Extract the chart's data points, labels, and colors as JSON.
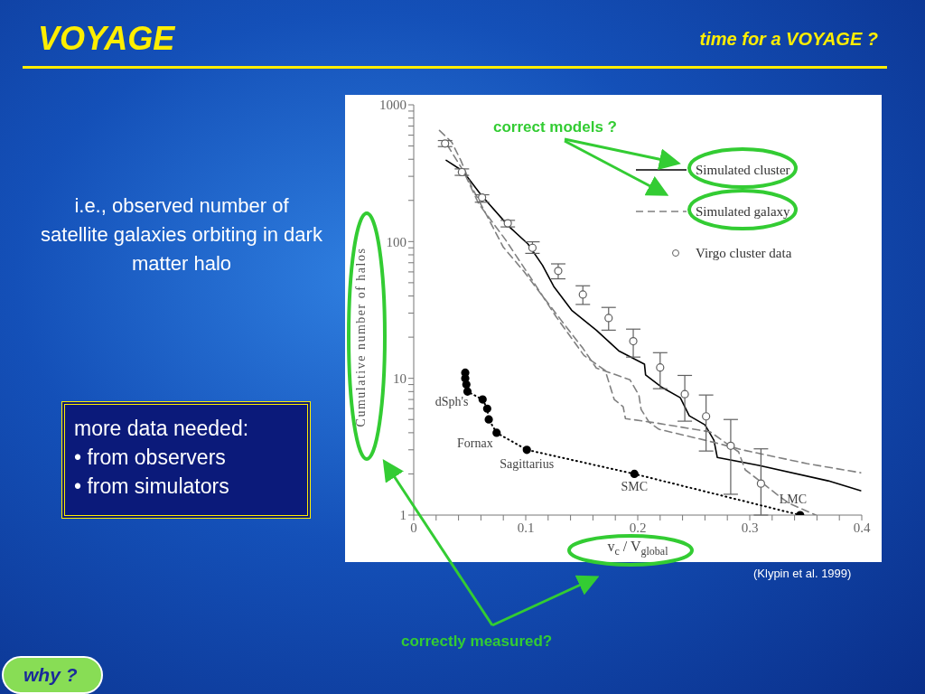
{
  "chart_data": {
    "type": "line",
    "title": "VOYAGE",
    "subtitle": "time for a VOYAGE ?",
    "xlabel": "v$_{c}$ / V$_{global}$",
    "ylabel": "Cumulative number of halos",
    "log": "y",
    "grid": false,
    "legend": "top right",
    "xlim": [
      0,
      0.4
    ],
    "ylim": [
      1,
      1000
    ],
    "xticks": [
      0,
      {
        "value": 0.02,
        "label": null
      },
      {
        "value": 0.04,
        "label": null
      },
      {
        "value": 0.06,
        "label": null
      },
      {
        "value": 0.08,
        "label": null
      },
      0.1,
      {
        "value": 0.12,
        "label": null
      },
      {
        "value": 0.14,
        "label": null
      },
      {
        "value": 0.16,
        "label": null
      },
      {
        "value": 0.18,
        "label": null
      },
      0.2,
      {
        "value": 0.22,
        "label": null
      },
      {
        "value": 0.24,
        "label": null
      },
      {
        "value": 0.26,
        "label": null
      },
      {
        "value": 0.28,
        "label": null
      },
      0.3,
      {
        "value": 0.32,
        "label": null
      },
      {
        "value": 0.34,
        "label": null
      },
      {
        "value": 0.36,
        "label": null
      },
      {
        "value": 0.38,
        "label": null
      },
      0.4
    ],
    "yticks": [
      1,
      {
        "value": 2,
        "label": null
      },
      {
        "value": 3,
        "label": null
      },
      {
        "value": 4,
        "label": null
      },
      {
        "value": 5,
        "label": null
      },
      {
        "value": 6,
        "label": null
      },
      {
        "value": 7,
        "label": null
      },
      {
        "value": 8,
        "label": null
      },
      {
        "value": 9,
        "label": null
      },
      10,
      {
        "value": 20,
        "label": null
      },
      {
        "value": 30,
        "label": null
      },
      {
        "value": 40,
        "label": null
      },
      {
        "value": 50,
        "label": null
      },
      {
        "value": 60,
        "label": null
      },
      {
        "value": 70,
        "label": null
      },
      {
        "value": 80,
        "label": null
      },
      {
        "value": 90,
        "label": null
      },
      100,
      {
        "value": 200,
        "label": null
      },
      {
        "value": 300,
        "label": null
      },
      {
        "value": 400,
        "label": null
      },
      {
        "value": 500,
        "label": null
      },
      {
        "value": 600,
        "label": null
      },
      {
        "value": 700,
        "label": null
      },
      {
        "value": 800,
        "label": null
      },
      {
        "value": 900,
        "label": null
      },
      1000
    ],
    "series": [
      {
        "name": "Simulated cluster",
        "type": "line",
        "color": "#000000",
        "line_style": "solid",
        "marker": "none",
        "x": [
          0.029,
          0.044,
          0.06,
          0.085,
          0.102,
          0.115,
          0.125,
          0.141,
          0.163,
          0.183,
          0.206,
          0.207,
          0.221,
          0.238,
          0.246,
          0.26,
          0.268,
          0.271,
          0.308,
          0.37,
          0.399
        ],
        "values": [
          393,
          327,
          220,
          129,
          96,
          67,
          47,
          31.5,
          22.5,
          15.9,
          12.7,
          10.6,
          8.65,
          7.21,
          5.32,
          4.57,
          3.53,
          2.64,
          2.31,
          1.78,
          1.51
        ]
      },
      {
        "name": "Simulated galaxy",
        "type": "line",
        "color": "#808080",
        "line_style": "dashed",
        "marker": "none",
        "x": [
          0.023,
          0.034,
          0.042,
          0.052,
          0.066,
          0.08,
          0.098,
          0.115,
          0.131,
          0.151,
          0.163,
          0.193,
          0.201,
          0.203,
          0.21,
          0.219,
          0.26,
          0.276,
          0.294,
          0.351,
          0.399
        ],
        "values": [
          649,
          532,
          393,
          249,
          151,
          91,
          61,
          40,
          27,
          16.6,
          11.9,
          9.77,
          7.55,
          5.92,
          4.79,
          4.24,
          3.53,
          3.27,
          2.99,
          2.38,
          2.04
        ]
      },
      {
        "type": "line",
        "color": "#808080",
        "line_style": "dashed",
        "marker": "none",
        "x": [
          0.03,
          0.044,
          0.058,
          0.082,
          0.106,
          0.127,
          0.152,
          0.171,
          0.179,
          0.187,
          0.189,
          0.217,
          0.265,
          0.282,
          0.29,
          0.296,
          0.31,
          0.324,
          0.335,
          0.359
        ],
        "values": [
          508,
          332,
          189,
          103,
          52,
          28.3,
          14.7,
          11.4,
          7.0,
          6.2,
          5.08,
          4.71,
          4.05,
          3.22,
          2.9,
          2.14,
          1.75,
          1.42,
          1.22,
          1.0
        ]
      },
      {
        "name": "Virgo cluster data",
        "type": "scatter",
        "color": "#606060",
        "marker": "circle",
        "x": [
          0.028,
          0.043,
          0.061,
          0.084,
          0.106,
          0.129,
          0.151,
          0.174,
          0.196,
          0.22,
          0.242,
          0.261,
          0.283,
          0.31
        ],
        "values": [
          521,
          322,
          210,
          136,
          90,
          61,
          41,
          27.6,
          18.7,
          12,
          7.66,
          5.27,
          3.21,
          1.7
        ],
        "errors": [
          [
            495,
            548
          ],
          [
            305,
            340
          ],
          [
            194,
            220
          ],
          [
            128,
            143
          ],
          [
            82,
            99.6
          ],
          [
            53.4,
            68.7
          ],
          [
            34.7,
            47.5
          ],
          [
            22.5,
            33
          ],
          [
            14.3,
            22.9
          ],
          [
            8.4,
            15.4
          ],
          [
            4.86,
            10.5
          ],
          [
            2.94,
            7.55
          ],
          [
            1.42,
            5.0
          ],
          [
            1,
            3.05
          ]
        ]
      },
      {
        "type": "line",
        "color": "#000000",
        "line_style": "dotted",
        "marker": "circle",
        "x": [
          0.046,
          0.046,
          0.047,
          0.048,
          0.0615,
          0.0656,
          0.067,
          0.074,
          0.101,
          0.197,
          0.345
        ],
        "values": [
          11,
          10,
          9,
          8,
          7,
          6,
          5,
          4,
          3,
          2,
          1
        ]
      }
    ],
    "annotations": [
      {
        "text": "dSph's",
        "x": 0.048,
        "y": 8
      },
      {
        "text": "Fornax",
        "x": 0.074,
        "y": 4
      },
      {
        "text": "Sagittarius",
        "x": 0.101,
        "y": 3
      },
      {
        "text": "SMC",
        "x": 0.197,
        "y": 2
      },
      {
        "text": "LMC",
        "x": 0.345,
        "y": 1
      },
      "correct models ?",
      "(Klypin et al. 1999)",
      "i.e., observed number of satellite galaxies orbiting in dark matter halo",
      "more data needed:\n• from observers\n• from simulators",
      "correctly measured?",
      "why ?"
    ]
  }
}
